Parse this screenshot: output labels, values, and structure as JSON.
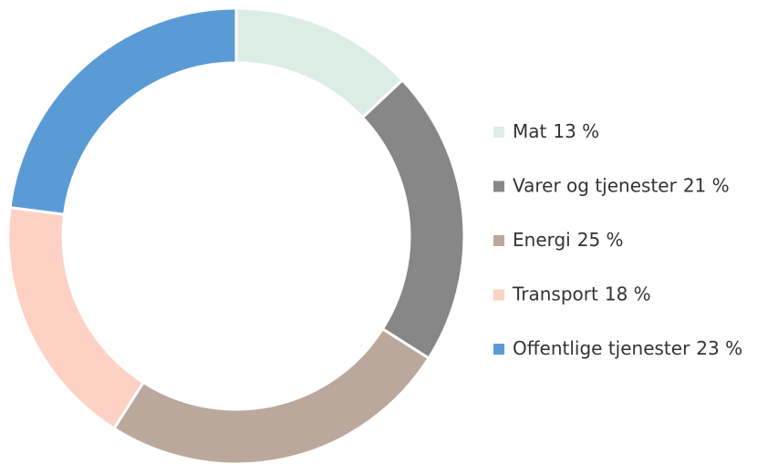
{
  "chart_data": {
    "type": "donut",
    "categories": [
      "Mat",
      "Varer og tjenester",
      "Energi",
      "Transport",
      "Offentlige tjenester"
    ],
    "values": [
      13,
      21,
      25,
      18,
      23
    ],
    "value_labels": [
      "13 %",
      "21 %",
      "25 %",
      "18 %",
      "23 %"
    ],
    "colors": [
      "#dcede6",
      "#878787",
      "#bba89d",
      "#fdd1c3",
      "#5b9bd5"
    ]
  }
}
